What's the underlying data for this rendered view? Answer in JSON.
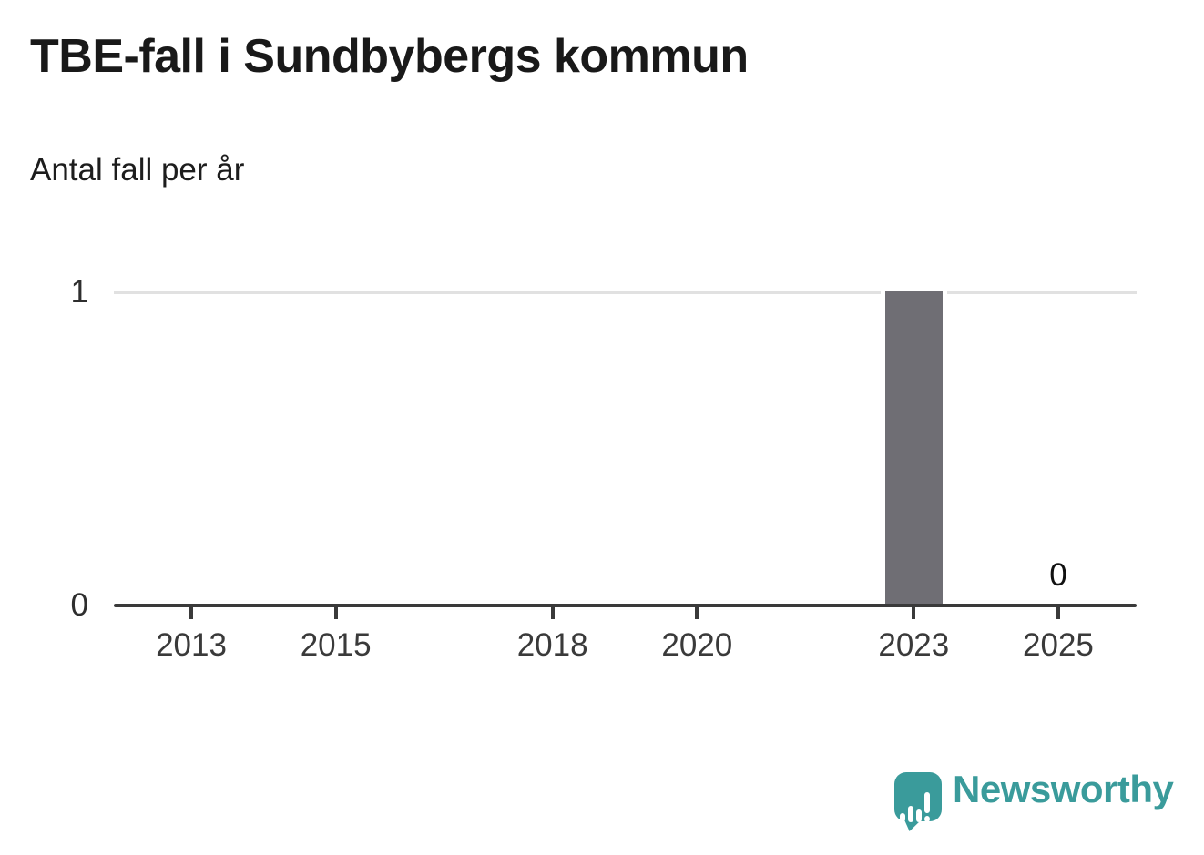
{
  "title": "TBE-fall i Sundbybergs kommun",
  "subtitle": "Antal fall per år",
  "branding": {
    "logo_text": "Newsworthy",
    "logo_icon": "newsworthy-speech-bubble-bar-chart-icon",
    "brand_color": "#3A9B9B"
  },
  "colors": {
    "bar": "#6F6E74",
    "grid": "#E1E1E1",
    "axis": "#3A3A3A",
    "title_text": "#191919",
    "value_label_text": "#111111"
  },
  "chart_data": {
    "type": "bar",
    "title": "TBE-fall i Sundbybergs kommun",
    "subtitle": "Antal fall per år",
    "x": [
      2012,
      2013,
      2014,
      2015,
      2016,
      2017,
      2018,
      2019,
      2020,
      2021,
      2022,
      2023,
      2024,
      2025
    ],
    "values": [
      0,
      0,
      0,
      0,
      0,
      0,
      0,
      0,
      0,
      0,
      0,
      1,
      0,
      0
    ],
    "x_ticks": [
      2013,
      2015,
      2018,
      2020,
      2023,
      2025
    ],
    "y_ticks": [
      0,
      1
    ],
    "ylim": [
      0,
      1
    ],
    "xlabel": "",
    "ylabel": "Antal fall per år",
    "grid": true,
    "legend": false,
    "bar_color": "#6F6E74",
    "annotations": [
      {
        "year": 2025,
        "label": "0"
      }
    ]
  }
}
